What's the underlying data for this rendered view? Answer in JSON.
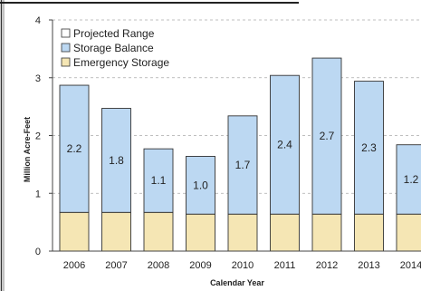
{
  "chart_data": {
    "type": "bar",
    "stacked": true,
    "categories": [
      "2006",
      "2007",
      "2008",
      "2009",
      "2010",
      "2011",
      "2012",
      "2013",
      "2014"
    ],
    "series": [
      {
        "name": "Emergency Storage",
        "color": "#f5e6b4",
        "values": [
          0.67,
          0.67,
          0.67,
          0.64,
          0.64,
          0.64,
          0.64,
          0.64,
          0.64
        ]
      },
      {
        "name": "Storage Balance",
        "color": "#bcd8f2",
        "values": [
          2.2,
          1.8,
          1.1,
          1.0,
          1.7,
          2.4,
          2.7,
          2.3,
          1.2
        ],
        "labels": [
          "2.2",
          "1.8",
          "1.1",
          "1.0",
          "1.7",
          "2.4",
          "2.7",
          "2.3",
          "1.2"
        ]
      }
    ],
    "legend_entries": [
      {
        "name": "Projected Range",
        "color": "#ffffff"
      },
      {
        "name": "Storage Balance",
        "color": "#bcd8f2"
      },
      {
        "name": "Emergency Storage",
        "color": "#f5e6b4"
      }
    ],
    "legend_position": "top-left",
    "xlabel": "Calendar Year",
    "ylabel": "Million Acre-Feet",
    "ylim": [
      0,
      4
    ],
    "yticks": [
      "0",
      "1",
      "2",
      "3",
      "4"
    ],
    "grid": "horizontal dashed",
    "colors": {
      "bar_stroke": "#333333",
      "axis": "#444444",
      "grid": "#aaaaaa"
    }
  }
}
